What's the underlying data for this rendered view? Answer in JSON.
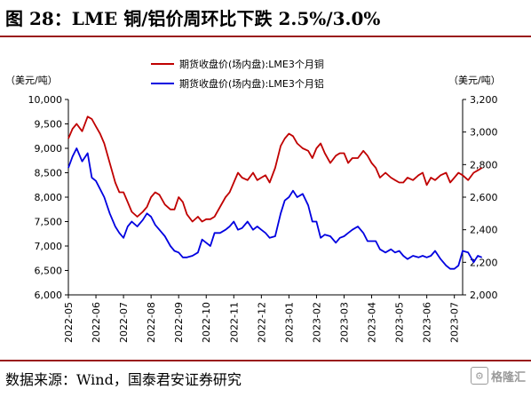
{
  "header": {
    "title": "图 28：LME 铜/铝价周环比下跌 2.5%/3.0%"
  },
  "footer": {
    "source": "数据来源：Wind，国泰君安证券研究",
    "watermark_text": "格隆汇"
  },
  "colors": {
    "copper": "#c00000",
    "aluminum": "#0000e0",
    "frame": "#9a1b1b",
    "axis": "#000000"
  },
  "chart_data": {
    "type": "line",
    "left_axis": {
      "unit_label": "（美元/吨）",
      "ylim": [
        6000,
        10000
      ],
      "ticks": [
        "6,000",
        "6,500",
        "7,000",
        "7,500",
        "8,000",
        "8,500",
        "9,000",
        "9,500",
        "10,000"
      ]
    },
    "right_axis": {
      "unit_label": "（美元/吨）",
      "ylim": [
        2000,
        3200
      ],
      "ticks": [
        "2,000",
        "2,200",
        "2,400",
        "2,600",
        "2,800",
        "3,000",
        "3,200"
      ]
    },
    "x_ticks": [
      "2022-05",
      "2022-06",
      "2022-07",
      "2022-08",
      "2022-09",
      "2022-10",
      "2022-11",
      "2022-12",
      "2023-01",
      "2023-02",
      "2023-03",
      "2023-04",
      "2023-05",
      "2023-06",
      "2023-07"
    ],
    "series": [
      {
        "name": "期货收盘价(场内盘):LME3个月铜",
        "axis": "left",
        "x": [
          0,
          0.15,
          0.3,
          0.5,
          0.7,
          0.85,
          1.0,
          1.15,
          1.3,
          1.5,
          1.7,
          1.85,
          2.0,
          2.15,
          2.3,
          2.5,
          2.7,
          2.85,
          3.0,
          3.15,
          3.3,
          3.5,
          3.7,
          3.85,
          4.0,
          4.15,
          4.3,
          4.5,
          4.7,
          4.85,
          5.0,
          5.15,
          5.3,
          5.5,
          5.7,
          5.85,
          6.0,
          6.15,
          6.3,
          6.5,
          6.7,
          6.85,
          7.0,
          7.15,
          7.3,
          7.5,
          7.7,
          7.85,
          8.0,
          8.15,
          8.3,
          8.5,
          8.7,
          8.85,
          9.0,
          9.15,
          9.3,
          9.5,
          9.7,
          9.85,
          10.0,
          10.15,
          10.3,
          10.5,
          10.7,
          10.85,
          11.0,
          11.15,
          11.3,
          11.5,
          11.7,
          11.85,
          12.0,
          12.15,
          12.3,
          12.5,
          12.7,
          12.85,
          13.0,
          13.15,
          13.3,
          13.5,
          13.7,
          13.85,
          14.0,
          14.15,
          14.3,
          14.5,
          14.7,
          14.85,
          15.0
        ],
        "values": [
          9200,
          9400,
          9500,
          9350,
          9650,
          9600,
          9450,
          9300,
          9100,
          8700,
          8300,
          8100,
          8100,
          7900,
          7700,
          7600,
          7700,
          7800,
          8000,
          8100,
          8050,
          7850,
          7750,
          7750,
          8000,
          7900,
          7650,
          7500,
          7600,
          7500,
          7550,
          7550,
          7600,
          7800,
          8000,
          8100,
          8300,
          8500,
          8400,
          8350,
          8500,
          8350,
          8400,
          8450,
          8300,
          8600,
          9050,
          9200,
          9300,
          9250,
          9100,
          9000,
          8950,
          8800,
          9000,
          9100,
          8900,
          8700,
          8850,
          8900,
          8900,
          8700,
          8800,
          8800,
          8950,
          8850,
          8700,
          8600,
          8400,
          8500,
          8400,
          8350,
          8300,
          8300,
          8400,
          8350,
          8450,
          8500,
          8250,
          8400,
          8350,
          8450,
          8500,
          8300,
          8400,
          8500,
          8450,
          8350,
          8500,
          8550,
          8600
        ]
      },
      {
        "name": "期货收盘价(场内盘):LME3个月铝",
        "axis": "right",
        "x": [
          0,
          0.15,
          0.3,
          0.5,
          0.7,
          0.85,
          1.0,
          1.15,
          1.3,
          1.5,
          1.7,
          1.85,
          2.0,
          2.15,
          2.3,
          2.5,
          2.7,
          2.85,
          3.0,
          3.15,
          3.3,
          3.5,
          3.7,
          3.85,
          4.0,
          4.15,
          4.3,
          4.5,
          4.7,
          4.85,
          5.0,
          5.15,
          5.3,
          5.5,
          5.7,
          5.85,
          6.0,
          6.15,
          6.3,
          6.5,
          6.7,
          6.85,
          7.0,
          7.15,
          7.3,
          7.5,
          7.7,
          7.85,
          8.0,
          8.15,
          8.3,
          8.5,
          8.7,
          8.85,
          9.0,
          9.15,
          9.3,
          9.5,
          9.7,
          9.85,
          10.0,
          10.15,
          10.3,
          10.5,
          10.7,
          10.85,
          11.0,
          11.15,
          11.3,
          11.5,
          11.7,
          11.85,
          12.0,
          12.15,
          12.3,
          12.5,
          12.7,
          12.85,
          13.0,
          13.15,
          13.3,
          13.5,
          13.7,
          13.85,
          14.0,
          14.15,
          14.3,
          14.5,
          14.7,
          14.85,
          15.0
        ],
        "values": [
          2780,
          2850,
          2900,
          2820,
          2870,
          2720,
          2700,
          2650,
          2600,
          2500,
          2420,
          2380,
          2350,
          2420,
          2450,
          2420,
          2460,
          2500,
          2480,
          2430,
          2400,
          2360,
          2300,
          2270,
          2260,
          2230,
          2230,
          2240,
          2260,
          2340,
          2320,
          2300,
          2380,
          2380,
          2400,
          2420,
          2450,
          2400,
          2410,
          2450,
          2400,
          2420,
          2400,
          2380,
          2350,
          2360,
          2500,
          2580,
          2600,
          2640,
          2600,
          2620,
          2550,
          2450,
          2450,
          2350,
          2370,
          2360,
          2320,
          2350,
          2360,
          2380,
          2400,
          2420,
          2380,
          2330,
          2330,
          2330,
          2280,
          2260,
          2280,
          2260,
          2270,
          2240,
          2220,
          2240,
          2230,
          2240,
          2230,
          2240,
          2270,
          2220,
          2180,
          2160,
          2160,
          2180,
          2270,
          2260,
          2200,
          2240,
          2230
        ]
      }
    ]
  }
}
